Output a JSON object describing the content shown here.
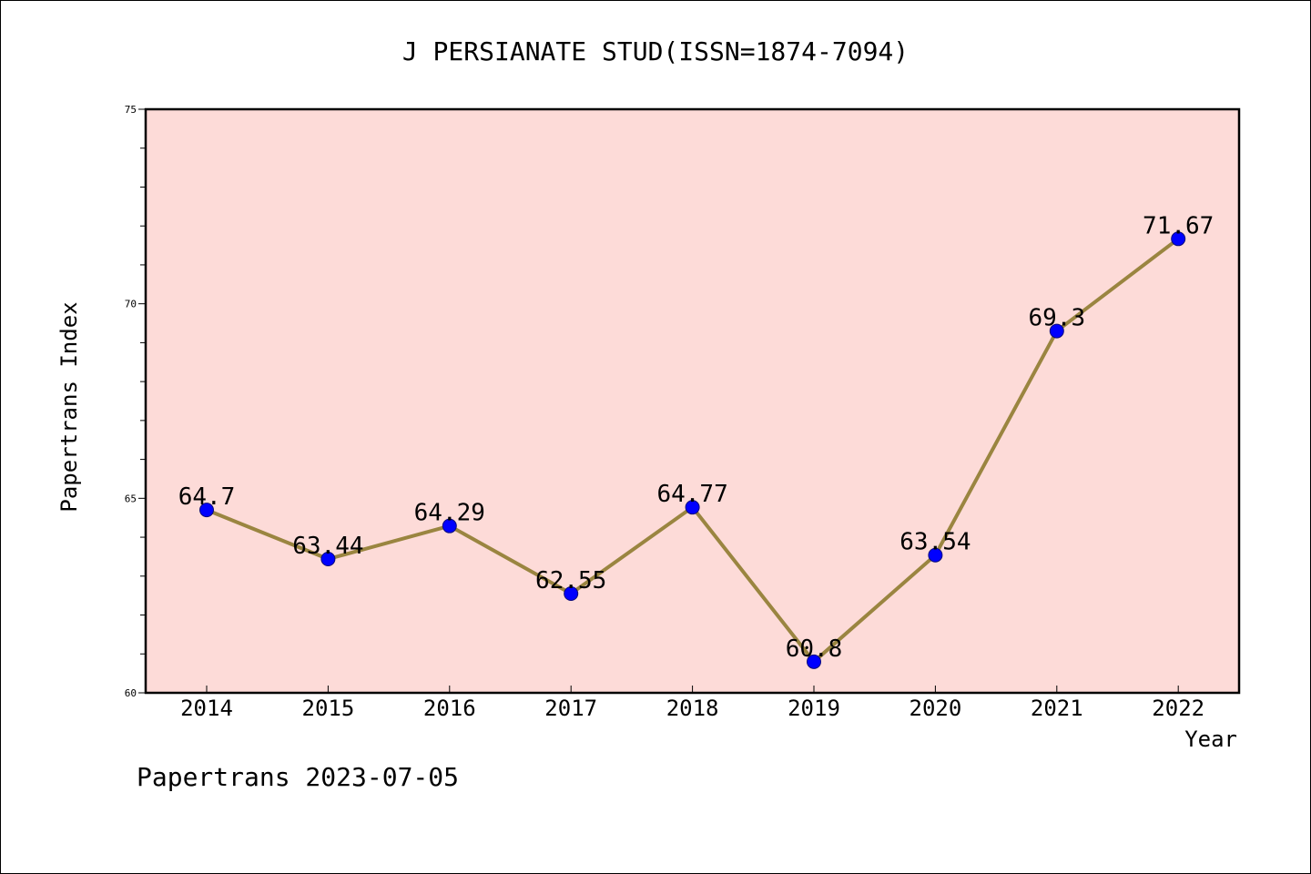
{
  "chart_data": {
    "type": "line",
    "title": "J PERSIANATE STUD(ISSN=1874-7094)",
    "xlabel": "Year",
    "ylabel": "Papertrans Index",
    "x": [
      "2014",
      "2015",
      "2016",
      "2017",
      "2018",
      "2019",
      "2020",
      "2021",
      "2022"
    ],
    "series": [
      {
        "values": [
          64.7,
          63.44,
          64.29,
          62.55,
          64.77,
          60.8,
          63.54,
          69.3,
          71.67
        ],
        "labels": [
          "64.7",
          "63.44",
          "64.29",
          "62.55",
          "64.77",
          "60.8",
          "63.54",
          "69.3",
          "71.67"
        ]
      }
    ],
    "ylim": [
      60,
      75
    ],
    "yticks": [
      "60",
      "65",
      "70",
      "75"
    ],
    "grid": false,
    "legend": "none",
    "footer": "Papertrans 2023-07-05",
    "colors": {
      "plot_background": "#fddbd8",
      "line": "#9a8540",
      "marker": "#0000ff",
      "marker_edge": "#0a0a7a"
    }
  }
}
